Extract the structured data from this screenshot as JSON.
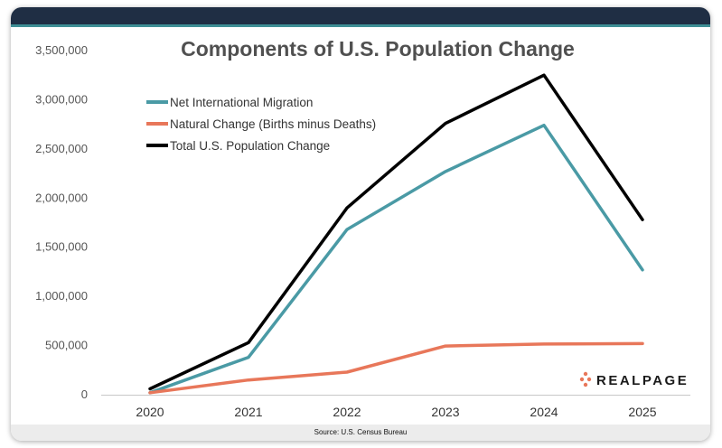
{
  "chart_data": {
    "type": "line",
    "title": "Components of U.S. Population Change",
    "source": "Source: U.S. Census Bureau",
    "logo_text": "REALPAGE",
    "x": [
      "2020",
      "2021",
      "2022",
      "2023",
      "2024",
      "2025"
    ],
    "ylim": [
      0,
      3500000
    ],
    "yticks": [
      "0",
      "500,000",
      "1,000,000",
      "1,500,000",
      "2,000,000",
      "2,500,000",
      "3,000,000",
      "3,500,000"
    ],
    "ytick_values": [
      0,
      500000,
      1000000,
      1500000,
      2000000,
      2500000,
      3000000,
      3500000
    ],
    "grid": false,
    "legend_position": "top-left",
    "series": [
      {
        "name": "Net International Migration",
        "color": "#4a9aa5",
        "values": [
          20000,
          380000,
          1680000,
          2270000,
          2740000,
          1270000
        ]
      },
      {
        "name": "Natural Change (Births minus Deaths)",
        "color": "#e8775a",
        "values": [
          20000,
          150000,
          230000,
          495000,
          515000,
          520000
        ]
      },
      {
        "name": "Total U.S. Population Change",
        "color": "#000000",
        "values": [
          60000,
          530000,
          1900000,
          2760000,
          3250000,
          1780000
        ]
      }
    ]
  }
}
